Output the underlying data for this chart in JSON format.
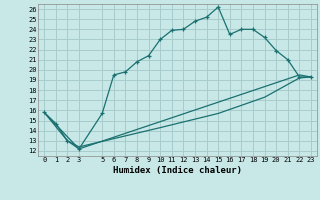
{
  "title": "",
  "xlabel": "Humidex (Indice chaleur)",
  "background_color": "#c8e8e8",
  "grid_color": "#a8cccc",
  "line_color": "#1a7070",
  "xlim": [
    -0.5,
    23.5
  ],
  "ylim": [
    11.5,
    26.5
  ],
  "xticks": [
    0,
    1,
    2,
    3,
    5,
    6,
    7,
    8,
    9,
    10,
    11,
    12,
    13,
    14,
    15,
    16,
    17,
    18,
    19,
    20,
    21,
    22,
    23
  ],
  "yticks": [
    12,
    13,
    14,
    15,
    16,
    17,
    18,
    19,
    20,
    21,
    22,
    23,
    24,
    25,
    26
  ],
  "series1_x": [
    0,
    1,
    2,
    3,
    5,
    6,
    7,
    8,
    9,
    10,
    11,
    12,
    13,
    14,
    15,
    16,
    17,
    18,
    19,
    20,
    21,
    22,
    23
  ],
  "series1_y": [
    15.8,
    14.7,
    13.0,
    12.2,
    15.7,
    19.5,
    19.8,
    20.8,
    21.4,
    23.0,
    23.9,
    24.0,
    24.8,
    25.2,
    26.2,
    23.5,
    24.0,
    24.0,
    23.2,
    21.9,
    21.0,
    19.3,
    19.3
  ],
  "series2_x": [
    0,
    3,
    22,
    23
  ],
  "series2_y": [
    15.8,
    12.2,
    19.5,
    19.3
  ],
  "series3_x": [
    0,
    2,
    3,
    10,
    15,
    19,
    22,
    23
  ],
  "series3_y": [
    15.8,
    13.0,
    12.4,
    14.3,
    15.7,
    17.3,
    19.2,
    19.3
  ]
}
